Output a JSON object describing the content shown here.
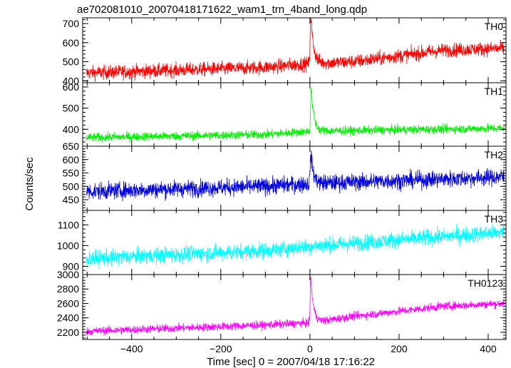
{
  "chart_data": {
    "type": "line",
    "title": "ae702081010_20070418171622_wam1_trn_4band_long.qdp",
    "xlabel": "Time [sec] 0 = 2007/04/18 17:16:22",
    "ylabel": "Counts/sec",
    "xlim": [
      -510,
      440
    ],
    "x_ticks": [
      -400,
      -200,
      0,
      200,
      400
    ],
    "x_tick_labels": [
      "−400",
      "−200",
      "0",
      "200",
      "400"
    ],
    "grid": false,
    "panels": [
      {
        "name": "TH0",
        "ylim": [
          390,
          730
        ],
        "y_ticks": [
          400,
          500,
          600,
          700
        ],
        "y_tick_labels": [
          "400",
          "500",
          "600",
          "700"
        ],
        "color": "#ff0000",
        "baseline": [
          [
            -510,
            440
          ],
          [
            -100,
            470
          ],
          [
            0,
            490
          ],
          [
            100,
            500
          ],
          [
            300,
            560
          ],
          [
            440,
            570
          ]
        ],
        "noise": 35,
        "peak": {
          "x": 2,
          "height": 260,
          "width": 6
        }
      },
      {
        "name": "TH1",
        "ylim": [
          320,
          620
        ],
        "y_ticks": [
          400,
          500,
          600
        ],
        "y_tick_labels": [
          "400",
          "500",
          "600"
        ],
        "color": "#00ee00",
        "baseline": [
          [
            -510,
            360
          ],
          [
            -100,
            375
          ],
          [
            0,
            390
          ],
          [
            440,
            405
          ]
        ],
        "noise": 20,
        "peak": {
          "x": 3,
          "height": 200,
          "width": 6
        }
      },
      {
        "name": "TH2",
        "ylim": [
          410,
          650
        ],
        "y_ticks": [
          450,
          500,
          550,
          600,
          650
        ],
        "y_tick_labels": [
          "450",
          "500",
          "550",
          "600",
          "650"
        ],
        "color": "#0000dd",
        "baseline": [
          [
            -510,
            480
          ],
          [
            -100,
            500
          ],
          [
            0,
            510
          ],
          [
            440,
            535
          ]
        ],
        "noise": 30,
        "peak": {
          "x": 2,
          "height": 110,
          "width": 6
        }
      },
      {
        "name": "TH3",
        "ylim": [
          860,
          1170
        ],
        "y_ticks": [
          900,
          1000,
          1100
        ],
        "y_tick_labels": [
          "900",
          "1000",
          "1100"
        ],
        "color": "#00ffff",
        "baseline": [
          [
            -510,
            935
          ],
          [
            -100,
            975
          ],
          [
            0,
            995
          ],
          [
            440,
            1065
          ]
        ],
        "noise": 38,
        "peak": null
      },
      {
        "name": "TH0123",
        "ylim": [
          2100,
          3000
        ],
        "y_ticks": [
          2200,
          2400,
          2600,
          2800,
          3000
        ],
        "y_tick_labels": [
          "2200",
          "2400",
          "2600",
          "2800",
          "3000"
        ],
        "color": "#ff00ff",
        "baseline": [
          [
            -510,
            2210
          ],
          [
            -100,
            2300
          ],
          [
            0,
            2330
          ],
          [
            100,
            2420
          ],
          [
            300,
            2560
          ],
          [
            440,
            2600
          ]
        ],
        "noise": 55,
        "peak": {
          "x": 2,
          "height": 620,
          "width": 6
        }
      }
    ]
  }
}
